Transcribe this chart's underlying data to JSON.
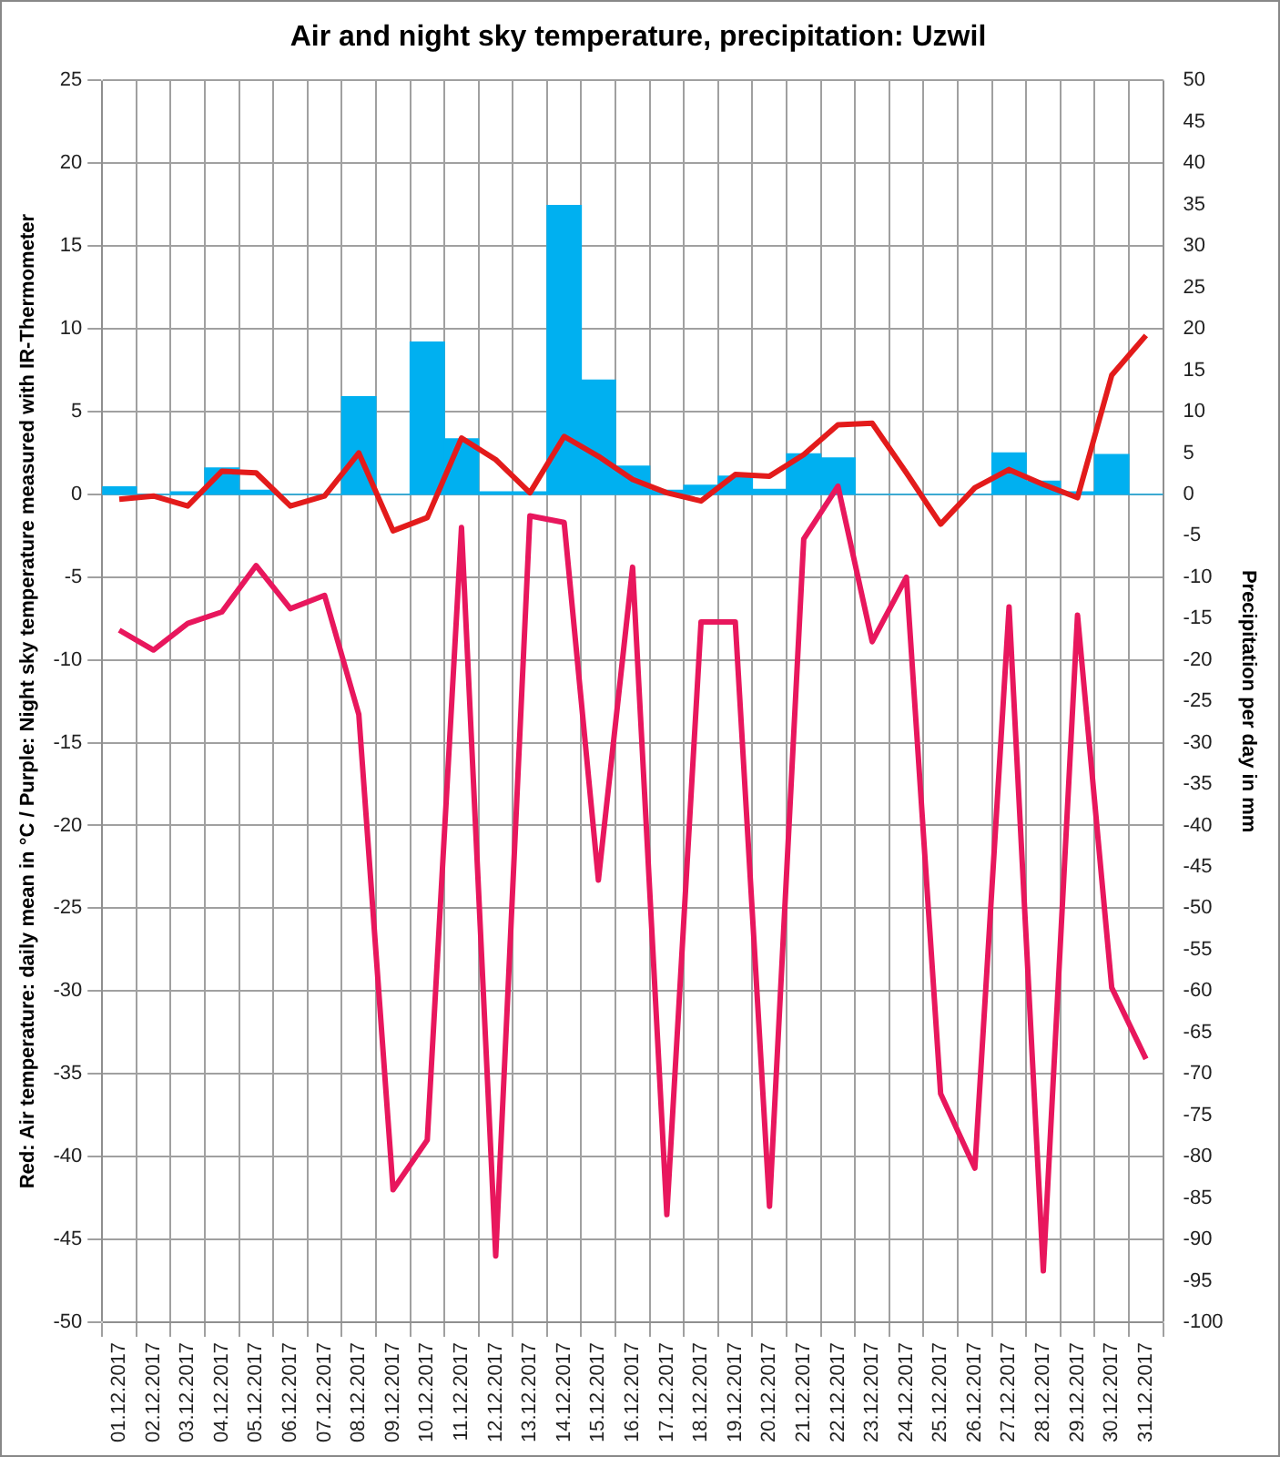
{
  "chart_data": {
    "type": "line",
    "title": "Air and night sky temperature, precipitation: Uzwil",
    "ylabel": "Red: Air temperature: daily mean in °C / Purple: Night sky temperature measured with IR-Thermometer",
    "y2label": "Precipitation per day in mm",
    "categories": [
      "01.12.2017",
      "02.12.2017",
      "03.12.2017",
      "04.12.2017",
      "05.12.2017",
      "06.12.2017",
      "07.12.2017",
      "08.12.2017",
      "09.12.2017",
      "10.12.2017",
      "11.12.2017",
      "12.12.2017",
      "13.12.2017",
      "14.12.2017",
      "15.12.2017",
      "16.12.2017",
      "17.12.2017",
      "18.12.2017",
      "19.12.2017",
      "20.12.2017",
      "21.12.2017",
      "22.12.2017",
      "23.12.2017",
      "24.12.2017",
      "25.12.2017",
      "26.12.2017",
      "27.12.2017",
      "28.12.2017",
      "29.12.2017",
      "30.12.2017",
      "31.12.2017"
    ],
    "series": [
      {
        "type": "bar",
        "axis": "y2",
        "color": "#00b0f0",
        "values": [
          0.9,
          0,
          0.3,
          3.2,
          0.5,
          0,
          0,
          11.8,
          0,
          18.4,
          6.7,
          0.3,
          0.3,
          34.9,
          13.8,
          3.4,
          0.5,
          1.1,
          2.2,
          0.6,
          4.9,
          4.4,
          0,
          0,
          0,
          0,
          5.0,
          1.6,
          0.3,
          4.8,
          0
        ]
      },
      {
        "color": "#e8175d",
        "values": [
          -8.2,
          -9.4,
          -7.8,
          -7.1,
          -4.3,
          -6.9,
          -6.1,
          -13.3,
          -42.0,
          -39.0,
          -2.0,
          -46.0,
          -1.3,
          -1.7,
          -23.3,
          -4.4,
          -43.5,
          -7.7,
          -7.7,
          -43.0,
          -2.7,
          0.5,
          -8.9,
          -5.0,
          -36.2,
          -40.7,
          -6.8,
          -46.9,
          -7.3,
          -29.8,
          -34.1
        ]
      },
      {
        "color": "#e31b1b",
        "values": [
          -0.3,
          -0.1,
          -0.7,
          1.4,
          1.3,
          -0.7,
          -0.1,
          2.5,
          -2.2,
          -1.4,
          3.4,
          2.1,
          0.1,
          3.5,
          2.3,
          0.9,
          0.1,
          -0.4,
          1.2,
          1.1,
          2.4,
          4.2,
          4.3,
          1.3,
          -1.8,
          0.4,
          1.5,
          0.6,
          -0.2,
          7.2,
          9.6
        ]
      }
    ],
    "ylim": [
      -50,
      25
    ],
    "yticks": [
      -50,
      -45,
      -40,
      -35,
      -30,
      -25,
      -20,
      -15,
      -10,
      -5,
      0,
      5,
      10,
      15,
      20,
      25
    ],
    "y2lim": [
      -100,
      50
    ],
    "y2ticks": [
      -100,
      -95,
      -90,
      -85,
      -80,
      -75,
      -70,
      -65,
      -60,
      -55,
      -50,
      -45,
      -40,
      -35,
      -30,
      -25,
      -20,
      -15,
      -10,
      -5,
      0,
      5,
      10,
      15,
      20,
      25,
      30,
      35,
      40,
      45,
      50
    ],
    "grid": true,
    "legend": false,
    "marker": "none",
    "line_style": "solid"
  }
}
